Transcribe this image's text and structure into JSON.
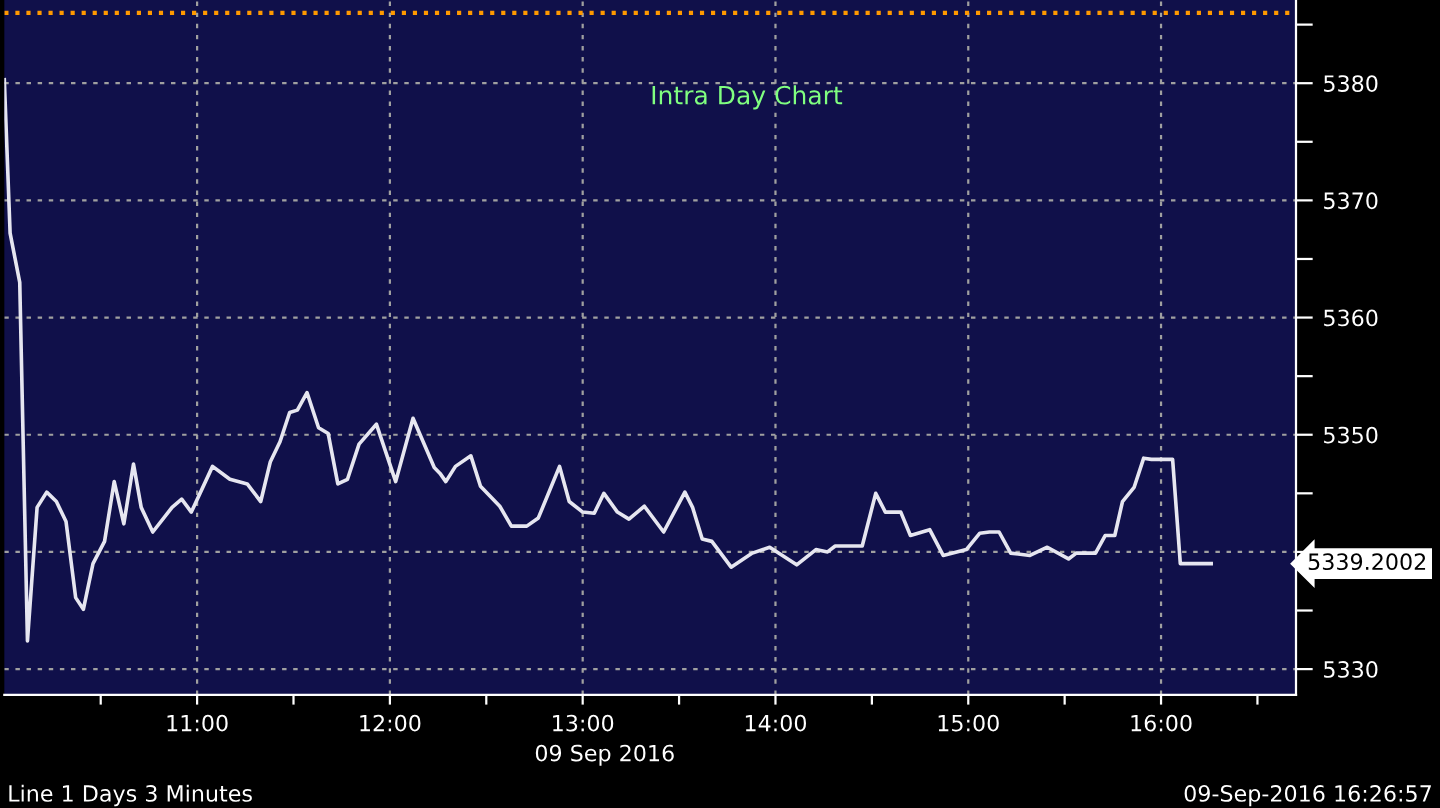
{
  "chart_data": {
    "type": "line",
    "title": "Intra Day Chart",
    "xlabel": "09 Sep 2016",
    "x": [
      10.0,
      10.03,
      10.08,
      10.12,
      10.17,
      10.22,
      10.27,
      10.32,
      10.37,
      10.41,
      10.46,
      10.52,
      10.57,
      10.62,
      10.67,
      10.71,
      10.77,
      10.87,
      10.92,
      10.97,
      11.08,
      11.17,
      11.26,
      11.33,
      11.38,
      11.43,
      11.48,
      11.52,
      11.57,
      11.63,
      11.68,
      11.73,
      11.78,
      11.84,
      11.93,
      12.03,
      12.12,
      12.23,
      12.26,
      12.29,
      12.34,
      12.42,
      12.47,
      12.57,
      12.63,
      12.71,
      12.77,
      12.88,
      12.93,
      13.0,
      13.06,
      13.11,
      13.18,
      13.24,
      13.32,
      13.42,
      13.53,
      13.57,
      13.62,
      13.67,
      13.77,
      13.88,
      13.97,
      14.11,
      14.21,
      14.27,
      14.31,
      14.45,
      14.52,
      14.57,
      14.65,
      14.7,
      14.8,
      14.87,
      14.92,
      14.99,
      15.06,
      15.11,
      15.16,
      15.22,
      15.32,
      15.41,
      15.52,
      15.56,
      15.66,
      15.71,
      15.76,
      15.8,
      15.86,
      15.91,
      15.95,
      16.06,
      16.1,
      16.26
    ],
    "series": [
      {
        "color": "#e6e6f0",
        "values": [
          5380.3,
          5367.2,
          5363.0,
          5332.4,
          5343.8,
          5345.1,
          5344.3,
          5342.6,
          5336.1,
          5335.1,
          5339.0,
          5340.9,
          5346.0,
          5342.4,
          5347.5,
          5343.8,
          5341.7,
          5343.8,
          5344.5,
          5343.4,
          5347.3,
          5346.2,
          5345.8,
          5344.3,
          5347.7,
          5349.4,
          5351.9,
          5352.1,
          5353.6,
          5350.6,
          5350.1,
          5345.8,
          5346.2,
          5349.2,
          5350.9,
          5346.0,
          5351.4,
          5347.2,
          5346.7,
          5346.0,
          5347.3,
          5348.2,
          5345.6,
          5343.9,
          5342.2,
          5342.2,
          5342.9,
          5347.3,
          5344.3,
          5343.4,
          5343.3,
          5345.0,
          5343.4,
          5342.8,
          5343.9,
          5341.7,
          5345.1,
          5343.8,
          5341.1,
          5340.9,
          5338.7,
          5339.9,
          5340.4,
          5338.9,
          5340.2,
          5340.0,
          5340.5,
          5340.5,
          5345.0,
          5343.4,
          5343.4,
          5341.4,
          5341.9,
          5339.7,
          5339.9,
          5340.2,
          5341.6,
          5341.7,
          5341.7,
          5339.9,
          5339.7,
          5340.4,
          5339.4,
          5339.9,
          5339.9,
          5341.4,
          5341.4,
          5344.3,
          5345.5,
          5348.0,
          5347.9,
          5347.9,
          5339.0,
          5339.0
        ]
      }
    ],
    "xlim": [
      10.0,
      16.7
    ],
    "ylim": [
      5327.8,
      5387.1
    ],
    "xticks": [
      {
        "value": 10.5,
        "label": null
      },
      {
        "value": 11,
        "label": "11:00"
      },
      {
        "value": 11.5,
        "label": null
      },
      {
        "value": 12,
        "label": "12:00"
      },
      {
        "value": 12.5,
        "label": null
      },
      {
        "value": 13,
        "label": "13:00"
      },
      {
        "value": 13.5,
        "label": null
      },
      {
        "value": 14,
        "label": "14:00"
      },
      {
        "value": 14.5,
        "label": null
      },
      {
        "value": 15,
        "label": "15:00"
      },
      {
        "value": 15.5,
        "label": null
      },
      {
        "value": 16,
        "label": "16:00"
      },
      {
        "value": 16.5,
        "label": null
      }
    ],
    "yticks": [
      5330,
      {
        "value": 5335,
        "label": null
      },
      {
        "value": 5340,
        "label": null
      },
      {
        "value": 5345,
        "label": null
      },
      5350,
      {
        "value": 5355,
        "label": null
      },
      5360,
      {
        "value": 5365,
        "label": null
      },
      5370,
      {
        "value": 5375,
        "label": null
      },
      5380,
      {
        "value": 5385,
        "label": null
      }
    ],
    "ref_lines": [
      {
        "axis": "y",
        "value": 5386,
        "color": "#ff9900",
        "line_style": "dotted"
      }
    ],
    "annotations": [
      "5339.2002",
      "Line 1 Days 3 Minutes",
      "09-Sep-2016 16:26:57"
    ],
    "grid": true,
    "marker": "none",
    "line_style": "solid",
    "legend": false
  }
}
